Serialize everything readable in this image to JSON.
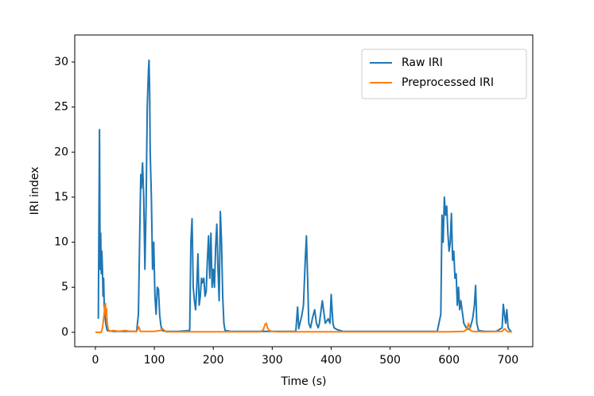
{
  "chart_data": {
    "type": "line",
    "xlabel": "Time (s)",
    "ylabel": "IRI index",
    "xlim": [
      -35,
      742
    ],
    "ylim": [
      -1.6,
      33
    ],
    "xticks": [
      0,
      100,
      200,
      300,
      400,
      500,
      600,
      700
    ],
    "yticks": [
      0,
      5,
      10,
      15,
      20,
      25,
      30
    ],
    "legend": "upper right",
    "series": [
      {
        "name": "Raw IRI",
        "color": "#1f77b4",
        "x": [
          5,
          7,
          8,
          9,
          10,
          11,
          12,
          13,
          14,
          15,
          16,
          18,
          20,
          30,
          50,
          70,
          73,
          75,
          77,
          78,
          80,
          82,
          84,
          86,
          88,
          90,
          91,
          92,
          93,
          95,
          97,
          99,
          101,
          103,
          105,
          107,
          109,
          111,
          113,
          120,
          140,
          160,
          162,
          164,
          166,
          168,
          170,
          172,
          174,
          176,
          178,
          180,
          182,
          184,
          186,
          188,
          190,
          192,
          194,
          196,
          198,
          200,
          202,
          204,
          206,
          208,
          210,
          212,
          214,
          216,
          218,
          220,
          230,
          300,
          340,
          343,
          345,
          347,
          350,
          353,
          356,
          358,
          360,
          362,
          365,
          368,
          372,
          375,
          378,
          380,
          385,
          390,
          395,
          398,
          400,
          403,
          405,
          410,
          420,
          500,
          580,
          586,
          588,
          590,
          592,
          594,
          596,
          598,
          600,
          602,
          604,
          606,
          608,
          610,
          612,
          614,
          616,
          618,
          620,
          625,
          630,
          635,
          640,
          643,
          645,
          647,
          650,
          660,
          680,
          690,
          692,
          694,
          696,
          698,
          700,
          702,
          705
        ],
        "values": [
          1.5,
          22.5,
          7,
          11,
          6.5,
          9,
          7,
          4,
          6,
          3,
          2,
          0.8,
          0.2,
          0.1,
          0.1,
          0.1,
          2,
          10,
          17.5,
          16,
          18.8,
          15,
          7,
          14,
          25,
          29,
          30.2,
          27,
          20,
          15,
          7,
          10,
          4,
          2,
          5,
          4.8,
          2,
          0.8,
          0.2,
          0.1,
          0.1,
          0.2,
          10,
          12.6,
          5,
          3.5,
          2.5,
          5,
          8.7,
          3,
          4,
          6,
          5.5,
          6,
          4,
          4.5,
          8,
          10.7,
          6,
          11,
          5,
          7,
          5,
          9.5,
          12,
          7,
          3.5,
          13.4,
          10,
          4,
          1,
          0.2,
          0.1,
          0.1,
          0.1,
          2.8,
          0.4,
          1,
          1.8,
          3,
          8,
          10.7,
          6,
          1,
          0.5,
          1.5,
          2.5,
          1,
          0.5,
          1,
          3.5,
          1,
          1.5,
          1,
          4.2,
          1,
          0.5,
          0.3,
          0.1,
          0.1,
          0.1,
          2,
          13,
          10,
          15,
          13,
          14,
          11,
          9,
          10,
          13.2,
          8,
          9,
          6,
          6.5,
          3,
          5,
          2.5,
          3.5,
          1,
          0.4,
          0.3,
          1.5,
          3,
          5.2,
          1,
          0.2,
          0.1,
          0.1,
          0.5,
          3.1,
          2,
          1,
          2.5,
          0.6,
          0.3,
          0.1
        ]
      },
      {
        "name": "Preprocessed IRI",
        "color": "#ff7f0e",
        "x": [
          0,
          10,
          12,
          14,
          16,
          17,
          18,
          19,
          20,
          22,
          25,
          30,
          40,
          50,
          60,
          70,
          74,
          76,
          80,
          100,
          110,
          114,
          120,
          200,
          280,
          285,
          288,
          290,
          292,
          295,
          300,
          310,
          400,
          500,
          600,
          625,
          630,
          633,
          636,
          640,
          660,
          690,
          694,
          697,
          700,
          707
        ],
        "values": [
          0,
          0,
          0.5,
          1.5,
          2.8,
          3.2,
          2,
          2.6,
          1,
          0.3,
          0.1,
          0.2,
          0.1,
          0.2,
          0.1,
          0.1,
          0.6,
          0.1,
          0.1,
          0.1,
          0.2,
          0.4,
          0.05,
          0.05,
          0.05,
          0.3,
          0.9,
          1,
          0.5,
          0.2,
          0.1,
          0.05,
          0.05,
          0.05,
          0.05,
          0.1,
          0.3,
          1,
          0.2,
          0.1,
          0.05,
          0.1,
          0.4,
          0.2,
          0.05,
          0.05
        ]
      }
    ]
  }
}
